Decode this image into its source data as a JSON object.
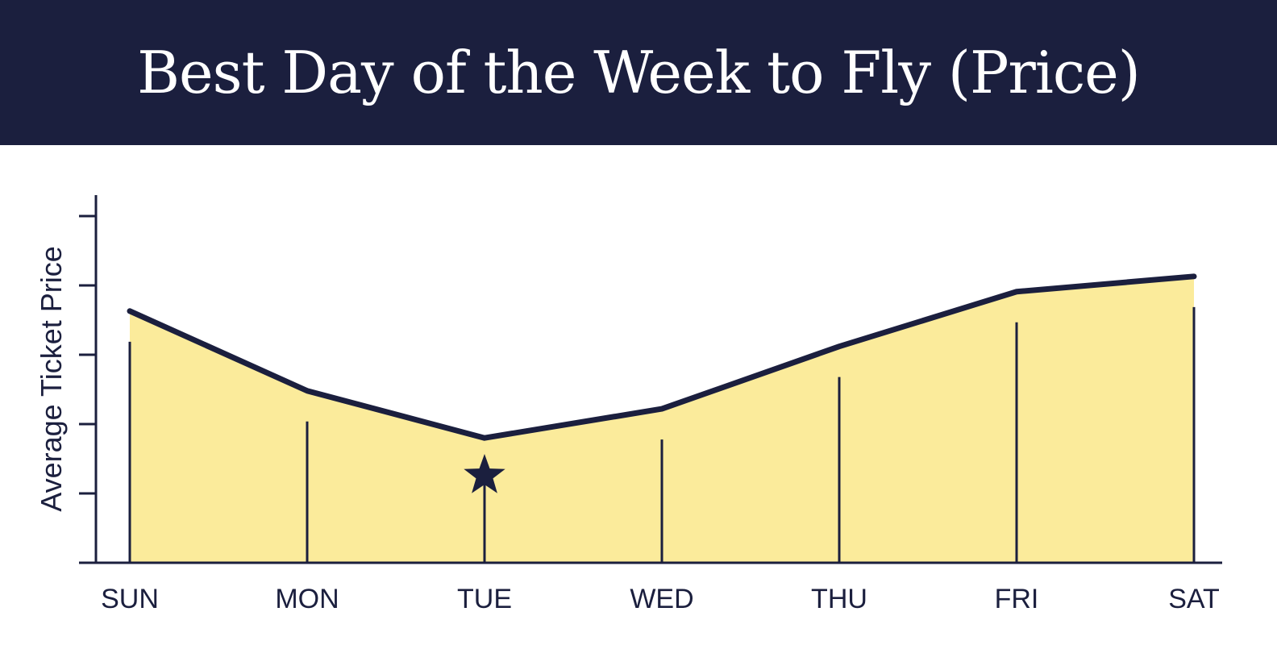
{
  "chart_data": {
    "type": "area",
    "title": "Best Day of the Week to Fly (Price)",
    "xlabel": "",
    "ylabel": "Average Ticket Price",
    "categories": [
      "SUN",
      "MON",
      "TUE",
      "WED",
      "THU",
      "FRI",
      "SAT"
    ],
    "values": [
      3.63,
      2.48,
      1.8,
      2.22,
      3.12,
      3.91,
      4.13
    ],
    "ylim": [
      0,
      5.3
    ],
    "y_ticks_labeled": false,
    "grid": false,
    "highlight": {
      "category": "TUE",
      "marker": "star-icon"
    },
    "colors": {
      "line": "#1b1f3e",
      "fill": "#fbeb9b",
      "banner": "#1b1f3e"
    }
  }
}
